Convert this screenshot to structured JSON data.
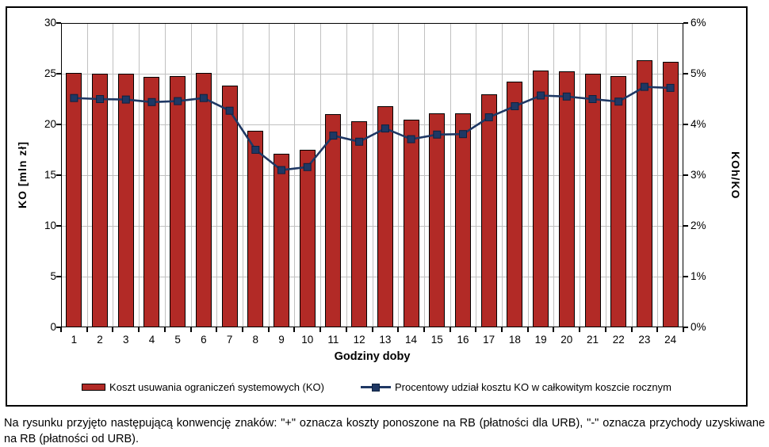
{
  "chart_data": {
    "type": "bar",
    "combo": "bar+line",
    "title": "",
    "xlabel": "Godziny doby",
    "categories": [
      "1",
      "2",
      "3",
      "4",
      "5",
      "6",
      "7",
      "8",
      "9",
      "10",
      "11",
      "12",
      "13",
      "14",
      "15",
      "16",
      "17",
      "18",
      "19",
      "20",
      "21",
      "22",
      "23",
      "24"
    ],
    "left_axis": {
      "label": "KO [mln zł]",
      "min": 0,
      "max": 30,
      "step": 5,
      "tick_suffix": ""
    },
    "right_axis": {
      "label": "KOh/KO",
      "min": 0,
      "max": 6,
      "step": 1,
      "tick_suffix": "%"
    },
    "grid": true,
    "legend_position": "bottom",
    "series": [
      {
        "name": "Koszt usuwania ograniczeń systemowych (KO)",
        "type": "bar",
        "axis": "left",
        "color": "#b22a26",
        "values": [
          25.1,
          25.0,
          25.0,
          24.7,
          24.8,
          25.1,
          23.8,
          19.4,
          17.1,
          17.5,
          21.0,
          20.3,
          21.8,
          20.5,
          21.1,
          21.1,
          23.0,
          24.2,
          25.3,
          25.2,
          25.0,
          24.8,
          26.3,
          26.2
        ]
      },
      {
        "name": "Procentowy udział kosztu KO w całkowitym koszcie rocznym",
        "type": "line",
        "axis": "right",
        "color": "#1f3864",
        "values": [
          4.52,
          4.5,
          4.49,
          4.44,
          4.46,
          4.52,
          4.27,
          3.5,
          3.1,
          3.16,
          3.78,
          3.66,
          3.92,
          3.71,
          3.8,
          3.81,
          4.14,
          4.36,
          4.57,
          4.55,
          4.5,
          4.45,
          4.74,
          4.72
        ]
      }
    ]
  },
  "colors": {
    "bar": "#b22a26",
    "line": "#1f3864",
    "grid": "#c0c0c0",
    "frame": "#000000"
  },
  "caption": "Na rysunku przyjęto następującą konwencję znaków: \"+\" oznacza koszty ponoszone na RB (płatności dla URB), \"-\" oznacza przychody uzyskiwane na RB (płatności od URB)."
}
